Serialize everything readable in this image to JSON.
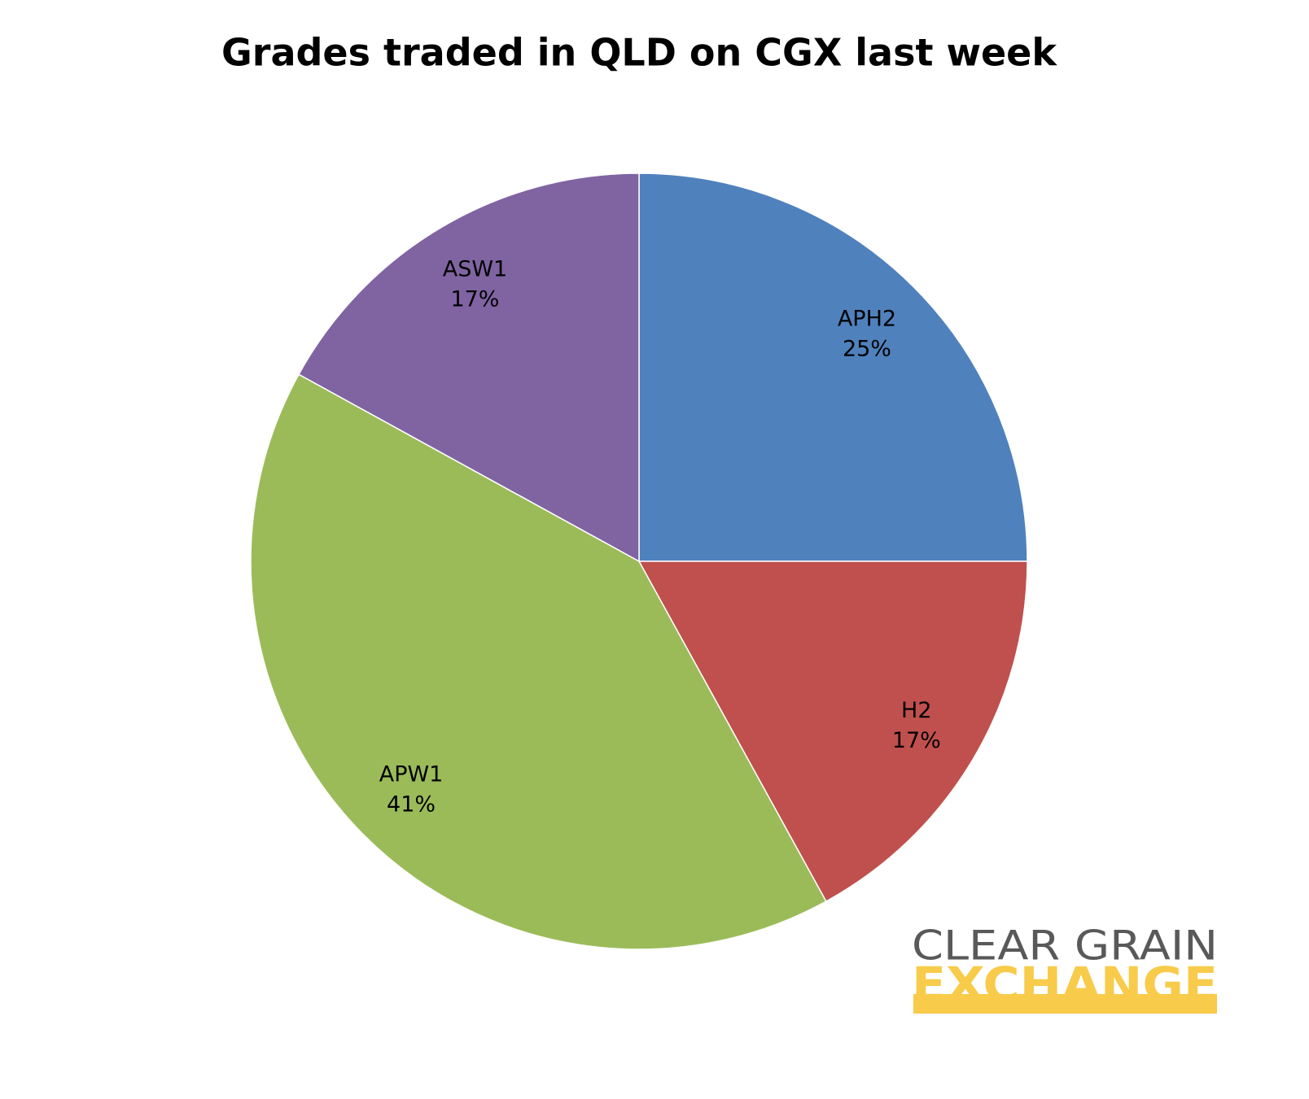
{
  "chart_data": {
    "type": "pie",
    "title": "Grades traded in QLD on CGX last week",
    "categories": [
      "APH2",
      "H2",
      "APW1",
      "ASW1"
    ],
    "values": [
      25,
      17,
      41,
      17
    ],
    "value_labels": [
      "25%",
      "17%",
      "41%",
      "17%"
    ],
    "colors": [
      "#4f81bd",
      "#c0504d",
      "#9bbb59",
      "#8064a2"
    ]
  },
  "logo": {
    "line1": "CLEAR GRAIN",
    "line2": "EXCHANGE"
  }
}
